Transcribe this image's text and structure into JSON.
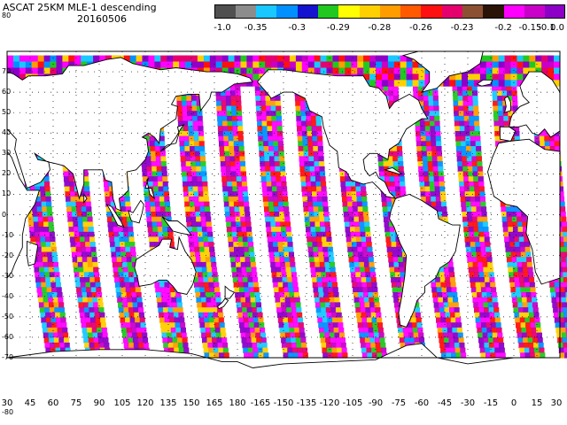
{
  "title": {
    "line1": "ASCAT 25KM MLE-1 descending",
    "line2": "20160506"
  },
  "colorbar": {
    "colors": [
      "#505050",
      "#8c8c8c",
      "#19c8ff",
      "#0090ff",
      "#1414d0",
      "#20c820",
      "#ffff00",
      "#ffd000",
      "#ff9c00",
      "#ff5a00",
      "#ff1010",
      "#e6006e",
      "#8c5032",
      "#2a1408",
      "#ff00ff",
      "#c800c8",
      "#8c00c8"
    ],
    "labels": [
      "-1.0",
      "-0.35",
      "-0.3",
      "-0.29",
      "-0.28",
      "-0.26",
      "-0.23",
      "-0.2",
      "-0.15",
      "-0.1",
      "0.0"
    ]
  },
  "axes": {
    "lat_labels": [
      "80",
      "70",
      "60",
      "50",
      "40",
      "30",
      "20",
      "10",
      "0",
      "-10",
      "-20",
      "-30",
      "-40",
      "-50",
      "-60",
      "-70",
      "-80"
    ],
    "lon_labels": [
      "30",
      "45",
      "60",
      "75",
      "90",
      "105",
      "120",
      "135",
      "150",
      "165",
      "180",
      "-165",
      "-150",
      "-135",
      "-120",
      "-105",
      "-90",
      "-75",
      "-60",
      "-45",
      "-30",
      "-15",
      "0",
      "15",
      "30"
    ],
    "lat_range": [
      -80,
      80
    ],
    "lon_range_degrees_east": [
      30,
      390
    ]
  },
  "swaths": {
    "pass_direction": "descending",
    "count": 14
  }
}
